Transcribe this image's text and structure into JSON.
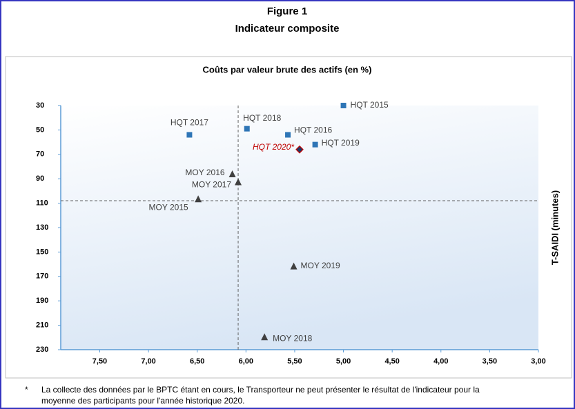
{
  "chart_data": {
    "type": "scatter",
    "figure_label": "Figure 1",
    "title": "Indicateur composite",
    "subtitle": "Coûts par valeur brute des actifs (en %)",
    "y_label": "T-SAIDI (minutes)",
    "xlim": [
      7.9,
      3.0
    ],
    "xticks": [
      {
        "value": 7.5,
        "label": "7,50"
      },
      {
        "value": 7.0,
        "label": "7,00"
      },
      {
        "value": 6.5,
        "label": "6,50"
      },
      {
        "value": 6.0,
        "label": "6,00"
      },
      {
        "value": 5.5,
        "label": "5,50"
      },
      {
        "value": 5.0,
        "label": "5,00"
      },
      {
        "value": 4.5,
        "label": "4,50"
      },
      {
        "value": 4.0,
        "label": "4,00"
      },
      {
        "value": 3.5,
        "label": "3,50"
      },
      {
        "value": 3.0,
        "label": "3,00"
      }
    ],
    "ylim": [
      30,
      230
    ],
    "yticks": [
      30,
      50,
      70,
      90,
      110,
      130,
      150,
      170,
      190,
      210,
      230
    ],
    "reference_lines": {
      "x": 6.08,
      "y": 108
    },
    "series": [
      {
        "marker": "square",
        "color": "#2e75b6",
        "label_color": "#404040",
        "labels": [
          "HQT 2015",
          "HQT 2017",
          "HQT 2018",
          "HQT 2016",
          "HQT 2019"
        ],
        "x": [
          5.0,
          6.58,
          5.99,
          5.57,
          5.29
        ],
        "y": [
          30,
          54,
          49,
          54,
          62
        ]
      },
      {
        "marker": "diamond",
        "color": "#1f3864",
        "label_color": "#c00000",
        "labels": [
          "HQT 2020*"
        ],
        "x": [
          5.45
        ],
        "y": [
          66
        ]
      },
      {
        "marker": "triangle",
        "color": "#404040",
        "label_color": "#404040",
        "labels": [
          "MOY 2016",
          "MOY 2017",
          "MOY 2015",
          "MOY 2019",
          "MOY 2018"
        ],
        "x": [
          6.14,
          6.08,
          6.49,
          5.51,
          5.81
        ],
        "y": [
          86.5,
          93,
          107,
          162,
          220
        ]
      }
    ],
    "footnote": {
      "marker": "*",
      "lines": [
        "La collecte des données par le BPTC étant en cours, le Transporteur ne peut présenter le résultat de l'indicateur pour la",
        "moyenne des participants pour l'année historique 2020."
      ]
    }
  }
}
